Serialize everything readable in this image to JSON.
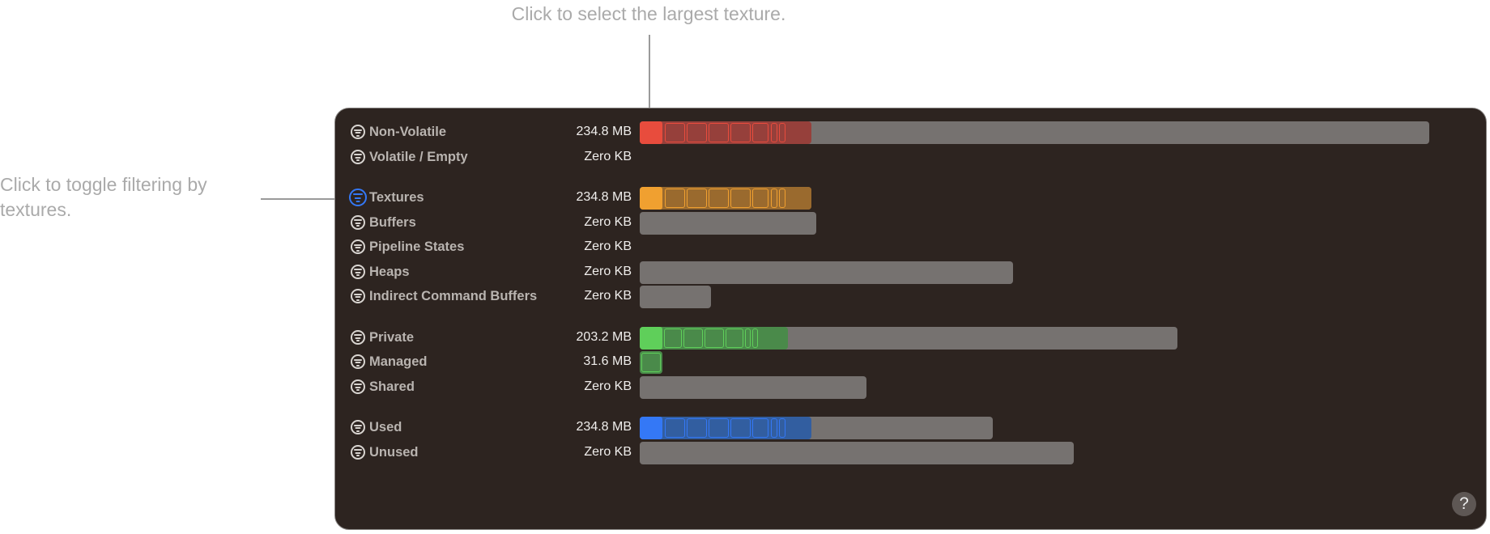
{
  "annotations": {
    "top": "Click to select the largest texture.",
    "left": "Click to toggle filtering by textures."
  },
  "colors": {
    "background": "#2d2420",
    "track": "#767270",
    "red": "#e84c3d",
    "orange": "#f0a030",
    "green": "#5fcf5a",
    "blue": "#3478f6"
  },
  "groups": [
    {
      "rows": [
        {
          "label": "Non-Volatile",
          "value": "234.8 MB",
          "bar": 1.0,
          "highlight": 0.217,
          "color": "red"
        },
        {
          "label": "Volatile / Empty",
          "value": "Zero KB",
          "bar": 0,
          "highlight": 0,
          "color": null
        }
      ]
    },
    {
      "rows": [
        {
          "label": "Textures",
          "value": "234.8 MB",
          "bar": 0.217,
          "highlight": 0.217,
          "color": "orange",
          "filter_active": true
        },
        {
          "label": "Buffers",
          "value": "Zero KB",
          "bar": 0.224,
          "highlight": 0,
          "color": null
        },
        {
          "label": "Pipeline States",
          "value": "Zero KB",
          "bar": 0,
          "highlight": 0,
          "color": null
        },
        {
          "label": "Heaps",
          "value": "Zero KB",
          "bar": 0.473,
          "highlight": 0,
          "color": null
        },
        {
          "label": "Indirect Command Buffers",
          "value": "Zero KB",
          "bar": 0.09,
          "highlight": 0,
          "color": null
        }
      ]
    },
    {
      "rows": [
        {
          "label": "Private",
          "value": "203.2 MB",
          "bar": 0.681,
          "highlight": 0.188,
          "color": "green"
        },
        {
          "label": "Managed",
          "value": "31.6 MB",
          "bar": 0.029,
          "highlight": 0.029,
          "color": "green"
        },
        {
          "label": "Shared",
          "value": "Zero KB",
          "bar": 0.287,
          "highlight": 0,
          "color": null
        }
      ]
    },
    {
      "rows": [
        {
          "label": "Used",
          "value": "234.8 MB",
          "bar": 0.447,
          "highlight": 0.217,
          "color": "blue"
        },
        {
          "label": "Unused",
          "value": "Zero KB",
          "bar": 0.55,
          "highlight": 0,
          "color": null
        }
      ]
    }
  ],
  "help_label": "?"
}
